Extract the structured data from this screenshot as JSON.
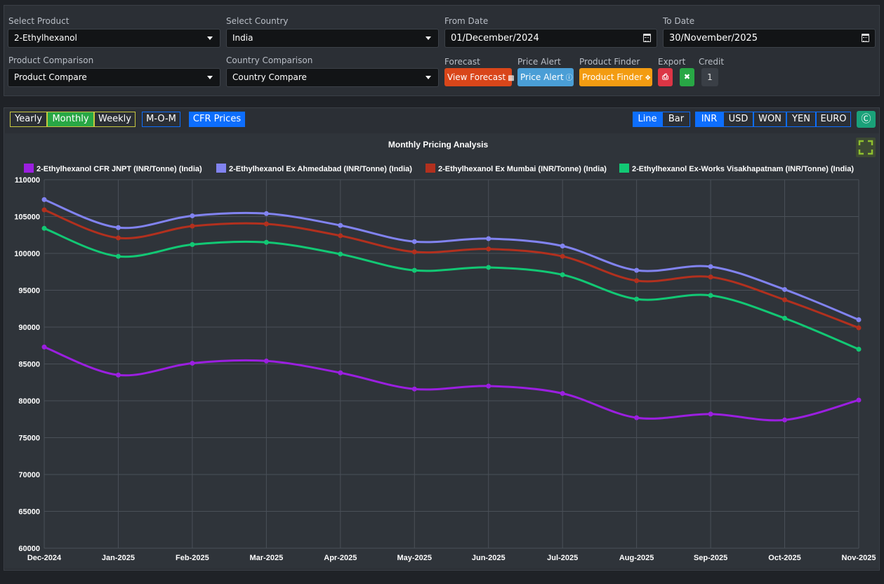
{
  "filters": {
    "product_label": "Select Product",
    "product_value": "2-Ethylhexanol",
    "country_label": "Select Country",
    "country_value": "India",
    "from_label": "From Date",
    "from_value": "01/December/2024",
    "to_label": "To Date",
    "to_value": "30/November/2025",
    "product_comp_label": "Product Comparison",
    "product_comp_value": "Product Compare",
    "country_comp_label": "Country Comparison",
    "country_comp_value": "Country Compare"
  },
  "actions": {
    "forecast_label": "Forecast",
    "forecast_button": "View Forecast",
    "price_alert_label": "Price Alert",
    "price_alert_button": "Price Alert",
    "finder_label": "Product Finder",
    "finder_button": "Product Finder",
    "export_label": "Export",
    "credit_label": "Credit",
    "credit_value": "1"
  },
  "toolbar": {
    "yearly": "Yearly",
    "monthly": "Monthly",
    "weekly": "Weekly",
    "mom": "M-O-M",
    "cfr": "CFR Prices",
    "line": "Line",
    "bar": "Bar",
    "currencies": [
      "INR",
      "USD",
      "WON",
      "YEN",
      "EURO"
    ],
    "active_period": "Monthly",
    "active_chart": "Line",
    "active_currency": "INR"
  },
  "colors": {
    "series_purple": "#9b1fe0",
    "series_lavender": "#8183f0",
    "series_red": "#b2301e",
    "series_green": "#12c874",
    "forecast_btn": "#d9461a",
    "alert_btn": "#4a9ed6",
    "finder_btn": "#f39c12",
    "active_blue": "#0d6efd",
    "active_green": "#28a745"
  },
  "chart_data": {
    "type": "line",
    "title": "Monthly Pricing Analysis",
    "categories": [
      "Dec-2024",
      "Jan-2025",
      "Feb-2025",
      "Mar-2025",
      "Apr-2025",
      "May-2025",
      "Jun-2025",
      "Jul-2025",
      "Aug-2025",
      "Sep-2025",
      "Oct-2025",
      "Nov-2025"
    ],
    "ylim": [
      60000,
      110000
    ],
    "yticks": [
      "110000",
      "105000",
      "100000",
      "95000",
      "90000",
      "85000",
      "80000",
      "75000",
      "70000",
      "65000",
      "60000"
    ],
    "grid": true,
    "legend": "top",
    "series": [
      {
        "name": "2-Ethylhexanol CFR JNPT (INR/Tonne) (India)",
        "color": "#9b1fe0",
        "values": [
          87300,
          83500,
          85100,
          85400,
          83800,
          81600,
          82000,
          81000,
          77700,
          78200,
          77400,
          80100
        ]
      },
      {
        "name": "2-Ethylhexanol Ex Ahmedabad (INR/Tonne) (India)",
        "color": "#8183f0",
        "values": [
          107300,
          103500,
          105100,
          105400,
          103800,
          101600,
          102000,
          101000,
          97700,
          98200,
          95100,
          91000
        ]
      },
      {
        "name": "2-Ethylhexanol Ex Mumbai (INR/Tonne) (India)",
        "color": "#b2301e",
        "values": [
          105900,
          102100,
          103700,
          104000,
          102400,
          100200,
          100600,
          99600,
          96300,
          96800,
          93700,
          89900
        ]
      },
      {
        "name": "2-Ethylhexanol Ex-Works Visakhapatnam (INR/Tonne) (India)",
        "color": "#12c874",
        "values": [
          103400,
          99600,
          101200,
          101500,
          99900,
          97700,
          98100,
          97100,
          93800,
          94300,
          91200,
          87000
        ]
      }
    ]
  }
}
